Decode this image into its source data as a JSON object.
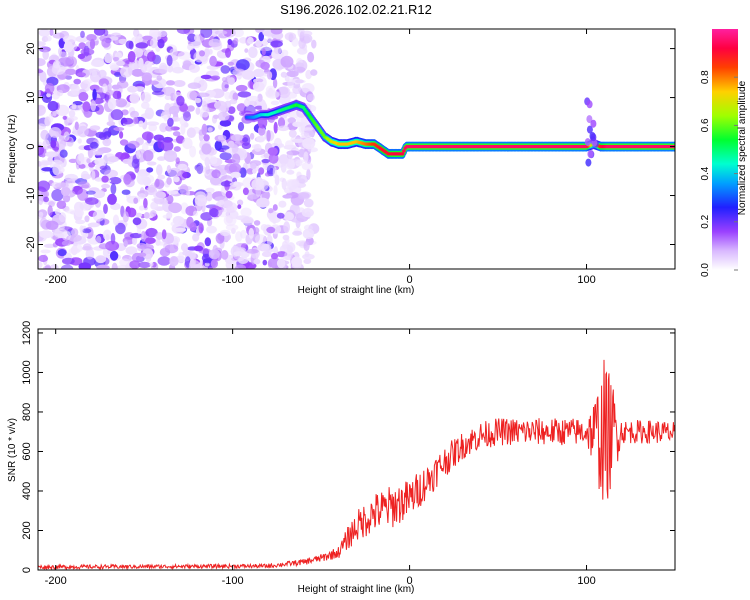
{
  "figure_title": "S196.2026.102.02.21.R12",
  "colors": {
    "line": "#ee2222",
    "background": "#ffffff",
    "colormap": [
      "#e6d6ff",
      "#c8a8ff",
      "#9a5cf0",
      "#7a00ff",
      "#0000ff",
      "#00e0ff",
      "#00ff60",
      "#c0ff00",
      "#ffa000",
      "#ff0000",
      "#ff1090"
    ]
  },
  "chart_data": [
    {
      "type": "heatmap",
      "title": "S196.2026.102.02.21.R12",
      "xlabel": "Height of straight line (km)",
      "ylabel": "Frequency (Hz)",
      "xlim": [
        -210,
        150
      ],
      "ylim": [
        -25,
        24
      ],
      "xticks": [
        -200,
        -100,
        0,
        100
      ],
      "xtick_labels": [
        "-200",
        "-100",
        "0",
        "100"
      ],
      "yticks": [
        20,
        10,
        0,
        -10,
        -20
      ],
      "ytick_labels": [
        "20",
        "10",
        "0",
        "-10",
        "-20"
      ],
      "noise_region": {
        "x_range": [
          -210,
          -72
        ],
        "y_range": [
          -25,
          24
        ]
      },
      "ridge": {
        "x": [
          -92,
          -88,
          -84,
          -80,
          -76,
          -72,
          -68,
          -64,
          -60,
          -56,
          -52,
          -48,
          -44,
          -40,
          -35,
          -30,
          -25,
          -20,
          -16,
          -12,
          -8,
          -4,
          -2,
          0,
          10,
          20,
          30,
          40,
          50,
          60,
          70,
          80,
          90,
          100,
          104,
          108,
          112,
          120,
          130,
          140,
          150
        ],
        "freq": [
          6,
          6,
          6.5,
          6.5,
          7,
          7.5,
          8,
          8.5,
          8,
          6,
          4,
          2,
          1,
          0.5,
          0.5,
          1,
          0.5,
          0.5,
          -0.5,
          -1.5,
          -1.5,
          -1.5,
          0,
          0,
          0,
          0,
          0,
          0,
          0,
          0,
          0,
          0,
          0,
          0,
          0.5,
          0,
          0,
          0,
          0,
          0,
          0
        ],
        "amplitude": [
          0.3,
          0.35,
          0.4,
          0.45,
          0.45,
          0.5,
          0.5,
          0.55,
          0.5,
          0.55,
          0.6,
          0.6,
          0.7,
          0.75,
          0.75,
          0.75,
          0.8,
          0.85,
          0.9,
          0.9,
          0.92,
          0.92,
          0.95,
          0.95,
          0.95,
          0.95,
          0.95,
          0.95,
          0.95,
          0.95,
          0.95,
          0.95,
          0.95,
          0.95,
          0.6,
          0.9,
          0.95,
          0.95,
          0.95,
          0.95,
          0.95
        ]
      },
      "colorbar": {
        "label": "Normalized spectral amplitude",
        "range": [
          0,
          1
        ],
        "ticks": [
          0,
          0.2,
          0.4,
          0.6,
          0.8
        ],
        "tick_labels": [
          "0.0",
          "0.2",
          "0.4",
          "0.6",
          "0.8"
        ]
      }
    },
    {
      "type": "line",
      "xlabel": "Height of straight line (km)",
      "ylabel": "SNR (10 * v/v)",
      "xlim": [
        -210,
        150
      ],
      "ylim": [
        0,
        1220
      ],
      "xticks": [
        -200,
        -100,
        0,
        100
      ],
      "xtick_labels": [
        "-200",
        "-100",
        "0",
        "100"
      ],
      "yticks": [
        0,
        200,
        400,
        600,
        800,
        1000,
        1200
      ],
      "ytick_labels": [
        "0",
        "200",
        "400",
        "600",
        "800",
        "1000",
        "1200"
      ],
      "series": [
        {
          "name": "SNR",
          "envelope_x": [
            -210,
            -80,
            -60,
            -50,
            -40,
            -35,
            -30,
            -20,
            -10,
            0,
            10,
            20,
            30,
            40,
            50,
            60,
            70,
            80,
            90,
            100,
            105,
            110,
            115,
            120,
            130,
            140,
            150
          ],
          "envelope_mean": [
            15,
            20,
            40,
            60,
            90,
            160,
            220,
            290,
            320,
            360,
            450,
            550,
            630,
            680,
            700,
            700,
            700,
            700,
            700,
            700,
            690,
            680,
            700,
            700,
            700,
            700,
            690
          ],
          "envelope_spread": [
            10,
            10,
            15,
            20,
            30,
            60,
            80,
            100,
            110,
            100,
            90,
            80,
            70,
            70,
            70,
            70,
            70,
            70,
            70,
            70,
            200,
            400,
            250,
            60,
            60,
            60,
            60
          ]
        }
      ]
    }
  ]
}
